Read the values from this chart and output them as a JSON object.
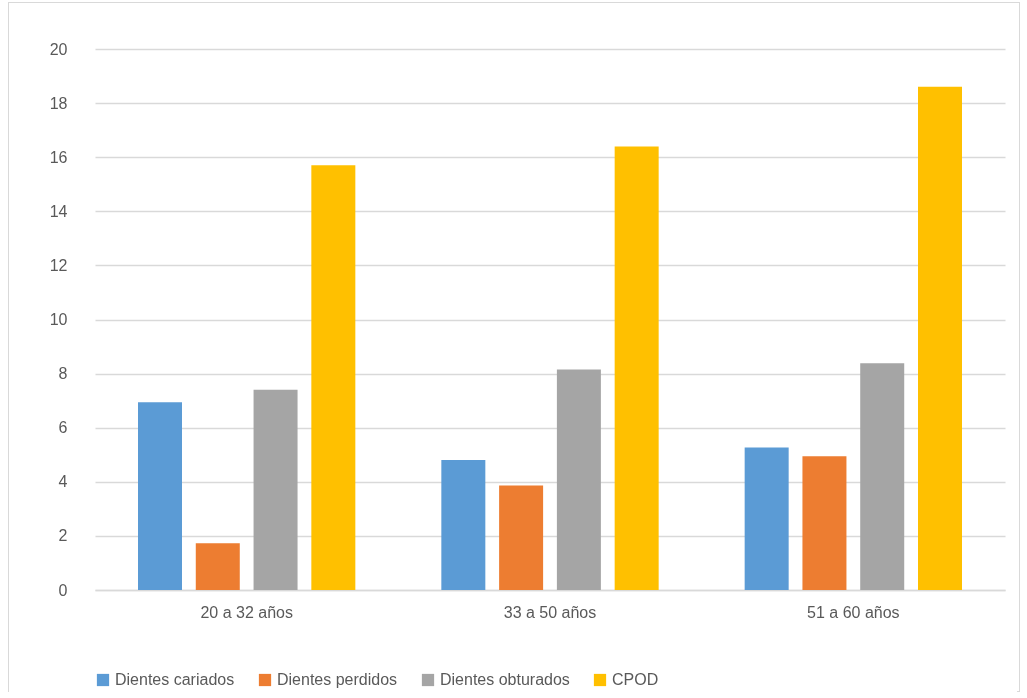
{
  "chart_data": {
    "type": "bar",
    "categories": [
      "20 a 32 años",
      "33 a 50 años",
      "51 a 60 años"
    ],
    "series": [
      {
        "name": "Dientes cariados",
        "color": "#5b9bd5",
        "values": [
          6.94,
          4.81,
          5.27
        ]
      },
      {
        "name": "Dientes perdidos",
        "color": "#ed7d31",
        "values": [
          1.73,
          3.86,
          4.94
        ]
      },
      {
        "name": "Dientes obturados",
        "color": "#a5a5a5",
        "values": [
          7.4,
          8.15,
          8.38
        ]
      },
      {
        "name": "CPOD",
        "color": "#ffc000",
        "values": [
          15.7,
          16.4,
          18.6
        ]
      }
    ],
    "ylim": [
      0,
      20
    ],
    "yticks": [
      0,
      2,
      4,
      6,
      8,
      10,
      12,
      14,
      16,
      18,
      20
    ],
    "grid": "y",
    "legend": "bottom"
  }
}
